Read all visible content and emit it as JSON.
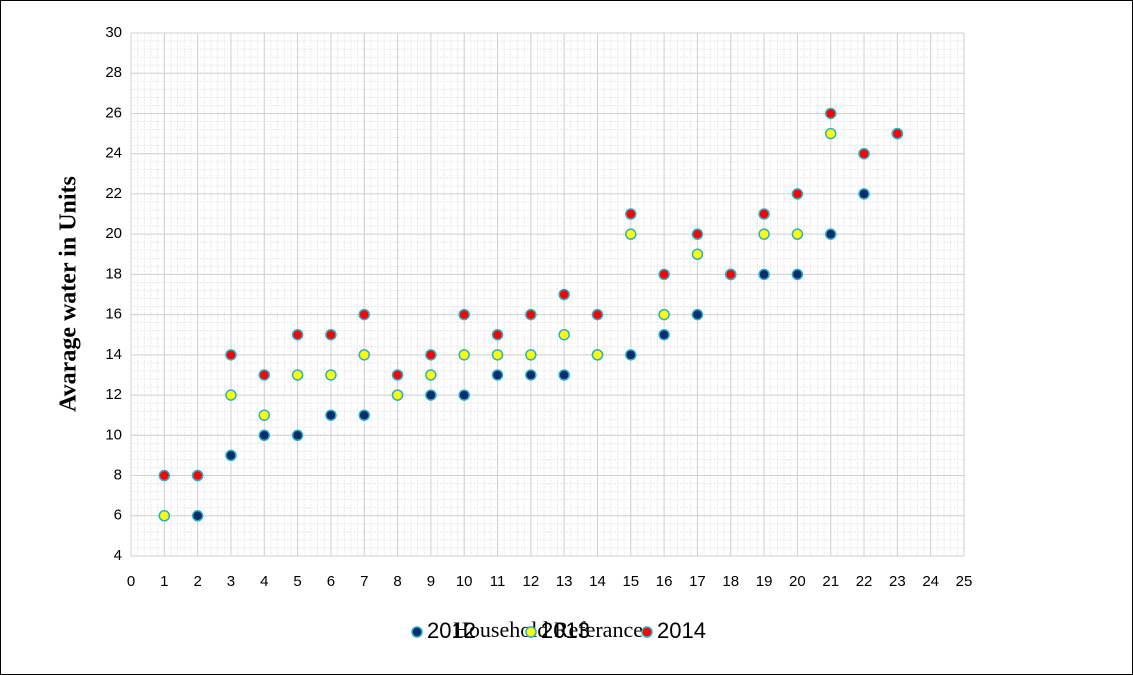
{
  "chart_data": {
    "type": "scatter",
    "xlabel": "Household Referance",
    "ylabel": "Avarage water in Units",
    "xlim": [
      0,
      25
    ],
    "xticks": [
      0,
      1,
      2,
      3,
      4,
      5,
      6,
      7,
      8,
      9,
      10,
      11,
      12,
      13,
      14,
      15,
      16,
      17,
      18,
      19,
      20,
      21,
      22,
      23,
      24,
      25
    ],
    "ylim": [
      4,
      30
    ],
    "yticks": [
      4,
      6,
      8,
      10,
      12,
      14,
      16,
      18,
      20,
      22,
      24,
      26,
      28,
      30
    ],
    "grid": true,
    "legend": "bottom",
    "x": [
      1,
      2,
      3,
      4,
      5,
      6,
      7,
      8,
      9,
      10,
      11,
      12,
      13,
      14,
      15,
      16,
      17,
      18,
      19,
      20,
      21,
      22,
      23
    ],
    "series": [
      {
        "name": "2012",
        "color": "#0d2c6b",
        "values": [
          6,
          6,
          9,
          10,
          10,
          11,
          11,
          12,
          12,
          12,
          13,
          13,
          13,
          14,
          14,
          15,
          16,
          18,
          18,
          18,
          20,
          22,
          25
        ]
      },
      {
        "name": "2013",
        "color": "#ffff00",
        "values": [
          6,
          8,
          12,
          11,
          13,
          13,
          14,
          12,
          13,
          14,
          14,
          14,
          15,
          14,
          20,
          16,
          19,
          18,
          20,
          20,
          25,
          24,
          25
        ]
      },
      {
        "name": "2014",
        "color": "#ff0000",
        "values": [
          8,
          8,
          14,
          13,
          15,
          15,
          16,
          13,
          14,
          16,
          15,
          16,
          17,
          16,
          21,
          18,
          20,
          18,
          21,
          22,
          26,
          24,
          25
        ]
      }
    ]
  }
}
